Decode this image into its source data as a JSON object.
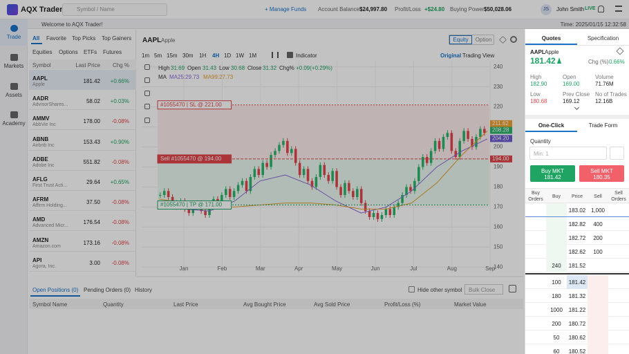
{
  "header": {
    "logo": "AQX Trader",
    "search": "Symbol / Name",
    "manage_funds": "+ Manage Funds",
    "account_balance_label": "Account Balance",
    "account_balance": "$24,997.80",
    "profit_loss_label": "Profit/Loss",
    "profit_loss": "+$24.80",
    "buying_power_label": "Buying Power",
    "buying_power": "$50,028.06",
    "user_initials": "JS",
    "user_name": "John Smith",
    "account_mode": "LIVE"
  },
  "welcome": "Welcome to AQX Trader!",
  "time": "Time: 2025/01/15 12:32:58",
  "sidebar": [
    "Trade",
    "Markets",
    "Assets",
    "Academy"
  ],
  "watchlist": {
    "tabs": [
      "All",
      "Favorite",
      "Top Picks",
      "Top Gainers"
    ],
    "subtabs": [
      "Equities",
      "Options",
      "ETFs",
      "Futures"
    ],
    "columns": [
      "Symbol",
      "Last Price",
      "Chg %"
    ],
    "rows": [
      {
        "symbol": "AAPL",
        "name": "Apple",
        "price": "181.42",
        "change": "+0.66%"
      },
      {
        "symbol": "AADR",
        "name": "AdvisorShares...",
        "price": "58.02",
        "change": "+0.03%"
      },
      {
        "symbol": "AMMV",
        "name": "AbbVie Inc",
        "price": "178.00",
        "change": "-0.08%"
      },
      {
        "symbol": "ABNB",
        "name": "Airbnb Inc",
        "price": "153.43",
        "change": "+0.90%"
      },
      {
        "symbol": "ADBE",
        "name": "Adobe Inc",
        "price": "551.82",
        "change": "-0.08%"
      },
      {
        "symbol": "AFLG",
        "name": "First Trust Acti...",
        "price": "29.64",
        "change": "+0.65%"
      },
      {
        "symbol": "AFRM",
        "name": "Affirm Holding...",
        "price": "37.50",
        "change": "-0.08%"
      },
      {
        "symbol": "AMD",
        "name": "Advanced Micr...",
        "price": "176.54",
        "change": "-0.08%"
      },
      {
        "symbol": "AMZN",
        "name": "Amazon.com",
        "price": "173.16",
        "change": "-0.08%"
      },
      {
        "symbol": "API",
        "name": "Agora, Inc.",
        "price": "3.00",
        "change": "-0.08%"
      }
    ]
  },
  "chart": {
    "symbol": "AAPL",
    "name": "Apple",
    "modes": [
      "Equity",
      "Option"
    ],
    "timeframes": [
      "1m",
      "5m",
      "15m",
      "30m",
      "1H",
      "4H",
      "1D",
      "1W",
      "1M"
    ],
    "indicator": "Indicator",
    "views": [
      "Original",
      "Trading View"
    ],
    "ohlc": [
      {
        "label": "High",
        "value": "31.69"
      },
      {
        "label": "Open",
        "value": "31.43"
      },
      {
        "label": "Low",
        "value": "30.68"
      },
      {
        "label": "Close",
        "value": "31.32"
      },
      {
        "label": "Chg%",
        "value": "+0.09(+0.29%)"
      }
    ],
    "ma_label": "MA",
    "ma_items": [
      "MA25:29.73",
      "MA99:27.73"
    ],
    "ylim": [
      137,
      243
    ],
    "yticks": [
      240,
      230,
      220,
      210,
      200,
      190,
      180,
      170,
      160,
      150,
      140
    ],
    "months": [
      "Jan",
      "Feb",
      "Mar",
      "Apr",
      "May",
      "Jun",
      "Jul",
      "Aug",
      "Sep"
    ],
    "closes": [
      176,
      178,
      175,
      172,
      170,
      173,
      169,
      167,
      170,
      172,
      168,
      166,
      170,
      174,
      172,
      176,
      179,
      175,
      178,
      181,
      183,
      178,
      185,
      189,
      186,
      192,
      190,
      196,
      198,
      201,
      203,
      197,
      199,
      192,
      186,
      189,
      183,
      180,
      185,
      191,
      186,
      183,
      188,
      180,
      176,
      182,
      178,
      175,
      179,
      172,
      168,
      165,
      167,
      164,
      166,
      169,
      166,
      170,
      172,
      176,
      180,
      178,
      183,
      190,
      195,
      192,
      198,
      203,
      199,
      205,
      207,
      198,
      195,
      203,
      208,
      204,
      200,
      205,
      209,
      207
    ],
    "ma25": [
      172,
      169,
      168,
      173,
      183,
      186,
      181,
      173,
      167,
      170,
      178,
      190,
      198,
      204
    ],
    "ma99": [
      174,
      172,
      170,
      170,
      171,
      172,
      172,
      171,
      169,
      169,
      172,
      182,
      196,
      208
    ],
    "orders": [
      {
        "label": "#1055470 | SL @ 221.00",
        "price": 221,
        "kind": "sl"
      },
      {
        "label": "Sell #1055470 @ 194.00",
        "price": 194,
        "kind": "entry"
      },
      {
        "label": "#1055470 | TP @ 171.00",
        "price": 171,
        "kind": "tp"
      }
    ],
    "price_tags": [
      {
        "value": 211.62,
        "label": "211.62",
        "color": "#f0a030"
      },
      {
        "value": 208.28,
        "label": "208.28",
        "color": "#2db36b"
      },
      {
        "value": 204.2,
        "label": "204.20",
        "color": "#6a5acd"
      },
      {
        "value": 194,
        "label": "194.00",
        "color": "#e0454a"
      }
    ]
  },
  "positions": {
    "tabs": [
      "Open Positions (0)",
      "Pending Orders (0)",
      "History"
    ],
    "hide_other": "Hide other symbol",
    "bulk_close": "Bulk Close",
    "columns": [
      "Symbol Name",
      "Quantity",
      "Last Price",
      "Avg Bought Price",
      "Avg Sold Price",
      "Profit/Loss (%)",
      "Market Value"
    ]
  },
  "quote": {
    "tabs": [
      "Quotes",
      "Specification"
    ],
    "symbol": "AAPL",
    "name": "Apple",
    "price": "181.42",
    "chg_label": "Chg (%)",
    "chg": "0.66%",
    "stats": [
      {
        "label": "High",
        "value": "182.90",
        "tone": "up"
      },
      {
        "label": "Open",
        "value": "169.00",
        "tone": "up"
      },
      {
        "label": "Volume",
        "value": "71.76M",
        "tone": "flat"
      },
      {
        "label": "Low",
        "value": "180.68",
        "tone": "down"
      },
      {
        "label": "Prev Close",
        "value": "169.12",
        "tone": "flat"
      },
      {
        "label": "No of Trades",
        "value": "12.16B",
        "tone": "flat"
      }
    ]
  },
  "trade": {
    "tabs": [
      "One-Click",
      "Trade Form"
    ],
    "quantity_label": "Quantity",
    "quantity_placeholder": "Min: 1",
    "buy_label": "Buy MKT",
    "buy_price": "181.42",
    "sell_label": "Sell MKT",
    "sell_price": "180.35"
  },
  "order_book": {
    "columns": [
      "Buy Orders",
      "Buy",
      "Price",
      "Sell",
      "Sell Orders"
    ],
    "rows": [
      {
        "price": "183.02",
        "sell": "1,000"
      },
      {
        "price": "182.82",
        "sell": "400"
      },
      {
        "price": "182.72",
        "sell": "200"
      },
      {
        "price": "182.62",
        "sell": "100"
      },
      {
        "buy": "240",
        "price": "181.52"
      },
      {
        "buy": "100",
        "price": "181.42"
      },
      {
        "buy": "180",
        "price": "181.32"
      },
      {
        "buy": "1000",
        "price": "181.22"
      },
      {
        "buy": "200",
        "price": "180.72"
      },
      {
        "buy": "50",
        "price": "180.62"
      },
      {
        "buy": "60",
        "price": "180.52"
      }
    ]
  }
}
